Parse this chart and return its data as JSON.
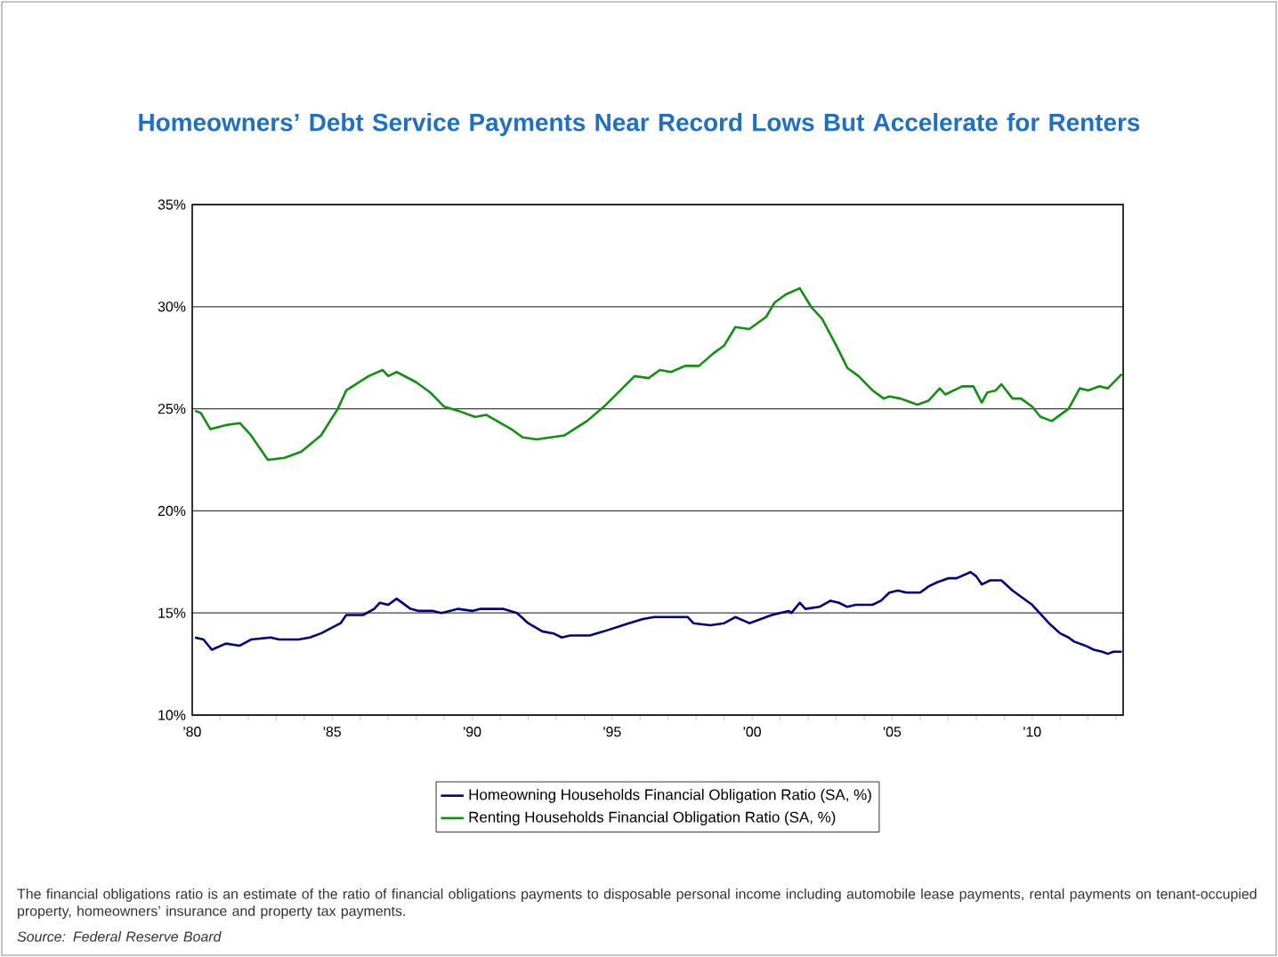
{
  "chart_data": {
    "type": "line",
    "title": "Homeowners’ Debt Service Payments Near Record Lows But Accelerate for Renters",
    "xlim": [
      1980,
      2013.25
    ],
    "ylim": [
      10,
      35
    ],
    "yticks": [
      {
        "value": 10,
        "label": "10%"
      },
      {
        "value": 15,
        "label": "15%"
      },
      {
        "value": 20,
        "label": "20%"
      },
      {
        "value": 25,
        "label": "25%"
      },
      {
        "value": 30,
        "label": "30%"
      },
      {
        "value": 35,
        "label": "35%"
      }
    ],
    "xticks": [
      {
        "value": 1980,
        "label": "'80"
      },
      {
        "value": 1981,
        "label": null
      },
      {
        "value": 1982,
        "label": null
      },
      {
        "value": 1983,
        "label": null
      },
      {
        "value": 1984,
        "label": null
      },
      {
        "value": 1985,
        "label": "'85"
      },
      {
        "value": 1986,
        "label": null
      },
      {
        "value": 1987,
        "label": null
      },
      {
        "value": 1988,
        "label": null
      },
      {
        "value": 1989,
        "label": null
      },
      {
        "value": 1990,
        "label": "'90"
      },
      {
        "value": 1991,
        "label": null
      },
      {
        "value": 1992,
        "label": null
      },
      {
        "value": 1993,
        "label": null
      },
      {
        "value": 1994,
        "label": null
      },
      {
        "value": 1995,
        "label": "'95"
      },
      {
        "value": 1996,
        "label": null
      },
      {
        "value": 1997,
        "label": null
      },
      {
        "value": 1998,
        "label": null
      },
      {
        "value": 1999,
        "label": null
      },
      {
        "value": 2000,
        "label": "'00"
      },
      {
        "value": 2001,
        "label": null
      },
      {
        "value": 2002,
        "label": null
      },
      {
        "value": 2003,
        "label": null
      },
      {
        "value": 2004,
        "label": null
      },
      {
        "value": 2005,
        "label": "'05"
      },
      {
        "value": 2006,
        "label": null
      },
      {
        "value": 2007,
        "label": null
      },
      {
        "value": 2008,
        "label": null
      },
      {
        "value": 2009,
        "label": null
      },
      {
        "value": 2010,
        "label": "'10"
      },
      {
        "value": 2011,
        "label": null
      },
      {
        "value": 2012,
        "label": null
      },
      {
        "value": 2013,
        "label": null
      }
    ],
    "grid": "y",
    "legend": "bottom",
    "marker": "none",
    "line_style": "solid",
    "series": [
      {
        "name": "Homeowning Households Financial Obligation Ratio (SA, %)",
        "color": "#000080",
        "x": [
          1980.1,
          1980.4,
          1980.7,
          1981.2,
          1981.7,
          1982.1,
          1982.8,
          1983.1,
          1983.8,
          1984.2,
          1984.6,
          1985.3,
          1985.5,
          1986.1,
          1986.5,
          1986.7,
          1987.0,
          1987.3,
          1987.8,
          1988.1,
          1988.6,
          1988.9,
          1989.5,
          1990.0,
          1990.3,
          1991.1,
          1991.6,
          1992.0,
          1992.5,
          1992.9,
          1993.2,
          1993.5,
          1994.2,
          1994.7,
          1995.6,
          1996.1,
          1996.5,
          1997.7,
          1997.9,
          1998.5,
          1999.0,
          1999.4,
          1999.9,
          2000.7,
          2001.3,
          2001.4,
          2001.7,
          2001.9,
          2002.4,
          2002.8,
          2003.1,
          2003.4,
          2003.7,
          2004.3,
          2004.6,
          2004.9,
          2005.2,
          2005.5,
          2006.0,
          2006.3,
          2006.6,
          2007.0,
          2007.3,
          2007.8,
          2008.0,
          2008.2,
          2008.5,
          2008.9,
          2009.3,
          2010.0,
          2010.6,
          2011.0,
          2011.3,
          2011.5,
          2011.9,
          2012.2,
          2012.5,
          2012.7,
          2012.9,
          2013.2
        ],
        "values": [
          13.8,
          13.7,
          13.2,
          13.5,
          13.4,
          13.7,
          13.8,
          13.7,
          13.7,
          13.8,
          14.0,
          14.5,
          14.9,
          14.9,
          15.2,
          15.5,
          15.4,
          15.7,
          15.2,
          15.1,
          15.1,
          15.0,
          15.2,
          15.1,
          15.2,
          15.2,
          15.0,
          14.5,
          14.1,
          14.0,
          13.8,
          13.9,
          13.9,
          14.1,
          14.5,
          14.7,
          14.8,
          14.8,
          14.5,
          14.4,
          14.5,
          14.8,
          14.5,
          14.9,
          15.1,
          15.0,
          15.5,
          15.2,
          15.3,
          15.6,
          15.5,
          15.3,
          15.4,
          15.4,
          15.6,
          16.0,
          16.1,
          16.0,
          16.0,
          16.3,
          16.5,
          16.7,
          16.7,
          17.0,
          16.8,
          16.4,
          16.6,
          16.6,
          16.1,
          15.4,
          14.5,
          14.0,
          13.8,
          13.6,
          13.4,
          13.2,
          13.1,
          13.0,
          13.1,
          13.1
        ]
      },
      {
        "name": "Renting Households Financial Obligation Ratio (SA, %)",
        "color": "#109010",
        "x": [
          1980.1,
          1980.3,
          1980.65,
          1981.2,
          1981.7,
          1982.1,
          1982.7,
          1983.3,
          1983.9,
          1984.6,
          1985.2,
          1985.5,
          1986.3,
          1986.8,
          1987.0,
          1987.3,
          1988.0,
          1988.5,
          1989.0,
          1989.5,
          1990.1,
          1990.5,
          1991.4,
          1991.8,
          1992.3,
          1993.3,
          1994.1,
          1994.7,
          1995.8,
          1996.3,
          1996.7,
          1997.1,
          1997.6,
          1998.1,
          1998.6,
          1999.0,
          1999.4,
          1999.9,
          2000.5,
          2000.8,
          2001.2,
          2001.7,
          2002.1,
          2002.5,
          2003.0,
          2003.4,
          2003.8,
          2004.3,
          2004.7,
          2004.9,
          2005.3,
          2005.9,
          2006.3,
          2006.7,
          2006.9,
          2007.5,
          2007.9,
          2008.2,
          2008.4,
          2008.7,
          2008.9,
          2009.3,
          2009.6,
          2010.0,
          2010.3,
          2010.7,
          2011.3,
          2011.7,
          2012.0,
          2012.4,
          2012.7,
          2013.2
        ],
        "values": [
          24.9,
          24.8,
          24.0,
          24.2,
          24.3,
          23.7,
          22.5,
          22.6,
          22.9,
          23.7,
          25.0,
          25.9,
          26.6,
          26.9,
          26.6,
          26.8,
          26.3,
          25.8,
          25.1,
          24.9,
          24.6,
          24.7,
          24.0,
          23.6,
          23.5,
          23.7,
          24.4,
          25.1,
          26.6,
          26.5,
          26.9,
          26.8,
          27.1,
          27.1,
          27.7,
          28.1,
          29.0,
          28.9,
          29.5,
          30.2,
          30.6,
          30.9,
          30.0,
          29.4,
          28.1,
          27.0,
          26.6,
          25.9,
          25.5,
          25.6,
          25.5,
          25.2,
          25.4,
          26.0,
          25.7,
          26.1,
          26.1,
          25.3,
          25.8,
          25.9,
          26.2,
          25.5,
          25.5,
          25.1,
          24.6,
          24.4,
          25.0,
          26.0,
          25.9,
          26.1,
          26.0,
          26.7
        ]
      }
    ],
    "annotations": [
      "The financial obligations ratio is an estimate of the ratio of financial obligations payments to disposable personal income including automobile lease payments, rental payments on tenant-occupied property, homeowners’ insurance and property tax payments.",
      "Source: Federal Reserve Board"
    ]
  }
}
